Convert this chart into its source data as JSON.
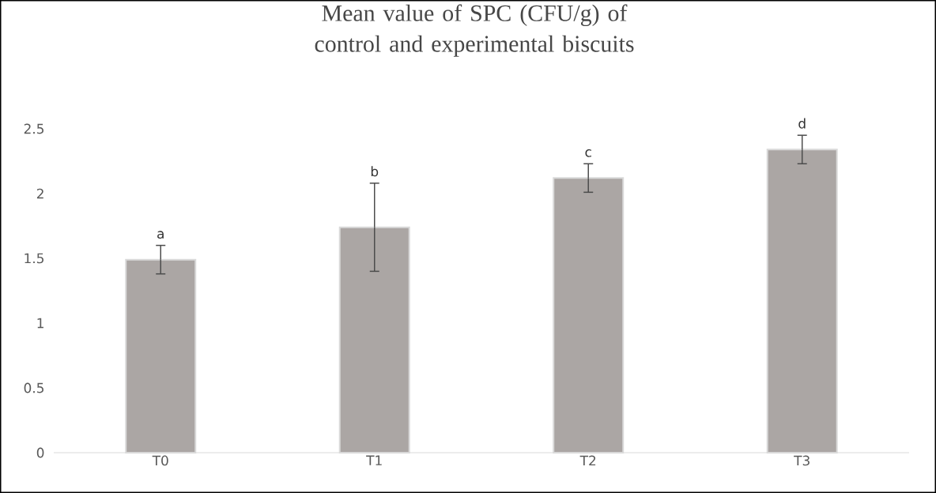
{
  "chart_data": {
    "type": "bar",
    "title": "Mean value of SPC (CFU/g) of control and experimental biscuits",
    "categories": [
      "T0",
      "T1",
      "T2",
      "T3"
    ],
    "values": [
      1.49,
      1.74,
      2.12,
      2.34
    ],
    "errors": [
      0.11,
      [
        1.4,
        2.08
      ],
      0.11,
      0.11
    ],
    "color": "#aba6a4",
    "ylim": [
      0,
      2.5
    ],
    "yticks": [
      0,
      0.5,
      1,
      1.5,
      2,
      2.5
    ],
    "grid": false,
    "annotations": [
      {
        "text": "a",
        "x": "T0",
        "y": 1.6
      },
      {
        "text": "b",
        "x": "T1",
        "y": 2.08
      },
      {
        "text": "c",
        "x": "T2",
        "y": 2.23
      },
      {
        "text": "d",
        "x": "T3",
        "y": 2.45
      }
    ]
  }
}
